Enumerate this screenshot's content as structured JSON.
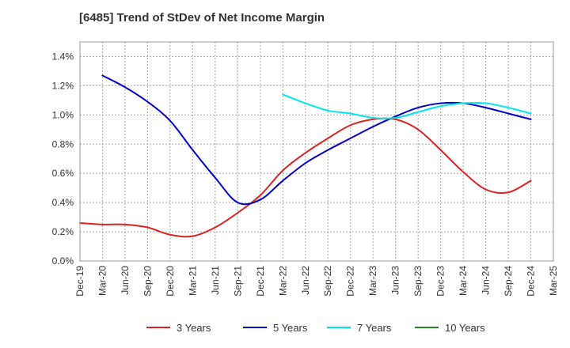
{
  "chart_data": {
    "type": "line",
    "title": "[6485]  Trend of StDev of Net Income Margin",
    "xlabel": "",
    "ylabel": "",
    "x_ticks": [
      "Dec-19",
      "Mar-20",
      "Jun-20",
      "Sep-20",
      "Dec-20",
      "Mar-21",
      "Jun-21",
      "Sep-21",
      "Dec-21",
      "Mar-22",
      "Jun-22",
      "Sep-22",
      "Dec-22",
      "Mar-23",
      "Jun-23",
      "Sep-23",
      "Dec-23",
      "Mar-24",
      "Jun-24",
      "Sep-24",
      "Dec-24",
      "Mar-25"
    ],
    "y_ticks": [
      "0.0%",
      "0.2%",
      "0.4%",
      "0.6%",
      "0.8%",
      "1.0%",
      "1.2%",
      "1.4%"
    ],
    "ylim": [
      0,
      1.5
    ],
    "y_unit": "%",
    "grid": true,
    "legend_position": "bottom",
    "series": [
      {
        "name": "3 Years",
        "color": "#dd2222",
        "points": [
          [
            "Dec-19",
            0.26
          ],
          [
            "Mar-20",
            0.25
          ],
          [
            "Jun-20",
            0.25
          ],
          [
            "Sep-20",
            0.23
          ],
          [
            "Dec-20",
            0.18
          ],
          [
            "Mar-21",
            0.17
          ],
          [
            "Jun-21",
            0.23
          ],
          [
            "Sep-21",
            0.33
          ],
          [
            "Dec-21",
            0.45
          ],
          [
            "Mar-22",
            0.62
          ],
          [
            "Jun-22",
            0.74
          ],
          [
            "Sep-22",
            0.84
          ],
          [
            "Dec-22",
            0.93
          ],
          [
            "Mar-23",
            0.97
          ],
          [
            "Jun-23",
            0.97
          ],
          [
            "Sep-23",
            0.9
          ],
          [
            "Dec-23",
            0.76
          ],
          [
            "Mar-24",
            0.61
          ],
          [
            "Jun-24",
            0.49
          ],
          [
            "Sep-24",
            0.47
          ],
          [
            "Dec-24",
            0.55
          ]
        ]
      },
      {
        "name": "5 Years",
        "color": "#0000cc",
        "points": [
          [
            "Mar-20",
            1.27
          ],
          [
            "Jun-20",
            1.19
          ],
          [
            "Sep-20",
            1.09
          ],
          [
            "Dec-20",
            0.96
          ],
          [
            "Mar-21",
            0.76
          ],
          [
            "Jun-21",
            0.57
          ],
          [
            "Sep-21",
            0.4
          ],
          [
            "Dec-21",
            0.42
          ],
          [
            "Mar-22",
            0.55
          ],
          [
            "Jun-22",
            0.67
          ],
          [
            "Sep-22",
            0.76
          ],
          [
            "Dec-22",
            0.84
          ],
          [
            "Mar-23",
            0.92
          ],
          [
            "Jun-23",
            0.99
          ],
          [
            "Sep-23",
            1.05
          ],
          [
            "Dec-23",
            1.08
          ],
          [
            "Mar-24",
            1.08
          ],
          [
            "Jun-24",
            1.05
          ],
          [
            "Sep-24",
            1.01
          ],
          [
            "Dec-24",
            0.97
          ]
        ]
      },
      {
        "name": "7 Years",
        "color": "#00e5ee",
        "points": [
          [
            "Mar-22",
            1.14
          ],
          [
            "Jun-22",
            1.08
          ],
          [
            "Sep-22",
            1.03
          ],
          [
            "Dec-22",
            1.01
          ],
          [
            "Mar-23",
            0.98
          ],
          [
            "Jun-23",
            0.98
          ],
          [
            "Sep-23",
            1.02
          ],
          [
            "Dec-23",
            1.06
          ],
          [
            "Mar-24",
            1.08
          ],
          [
            "Jun-24",
            1.08
          ],
          [
            "Sep-24",
            1.05
          ],
          [
            "Dec-24",
            1.01
          ]
        ]
      },
      {
        "name": "10 Years",
        "color": "#228B22",
        "points": []
      }
    ]
  }
}
